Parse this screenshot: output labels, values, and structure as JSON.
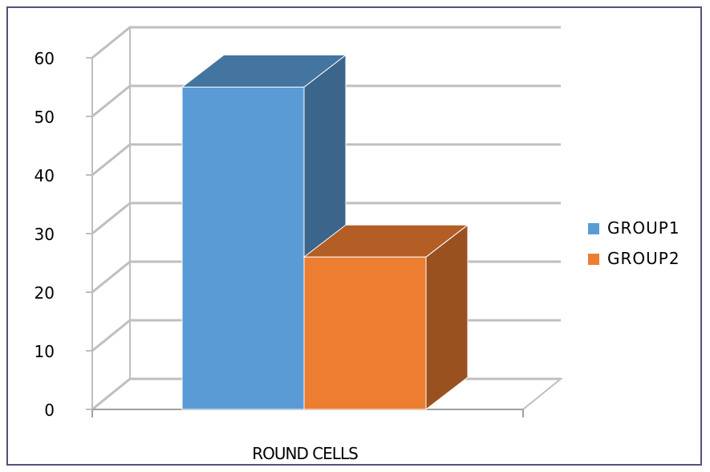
{
  "chart_data": {
    "type": "bar",
    "style": "3d-clustered-column",
    "categories": [
      "ROUND CELLS"
    ],
    "series": [
      {
        "name": "GROUP1",
        "values": [
          55
        ],
        "color": "#5b9bd5"
      },
      {
        "name": "GROUP2",
        "values": [
          26
        ],
        "color": "#ed7d31"
      }
    ],
    "ylim": [
      0,
      60
    ],
    "yticks": [
      0,
      10,
      20,
      30,
      40,
      50,
      60
    ],
    "grid": true,
    "legend_position": "right"
  }
}
